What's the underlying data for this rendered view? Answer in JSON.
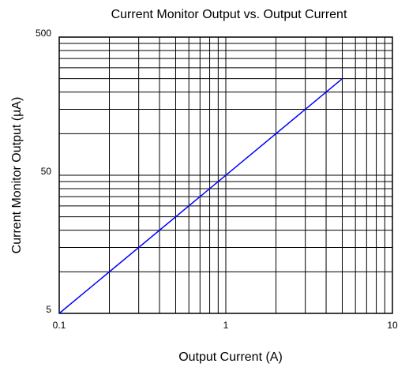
{
  "chart_data": {
    "type": "line",
    "title": "Current Monitor Output vs. Output Current",
    "x_label": "Output Current (A)",
    "y_label": "Current Monitor Output (µA)",
    "x": [
      0.1,
      5
    ],
    "series": [
      {
        "name": "Current Monitor Output",
        "color": "#0000ff",
        "values": [
          5,
          250
        ]
      }
    ],
    "xlim": [
      0.1,
      10
    ],
    "ylim": [
      5,
      500
    ],
    "xticks": [
      0.1,
      1,
      10
    ],
    "yticks": [
      5,
      50,
      500
    ],
    "xscale": "log",
    "yscale": "log",
    "grid": true,
    "minor_grid": true,
    "legend": false
  }
}
